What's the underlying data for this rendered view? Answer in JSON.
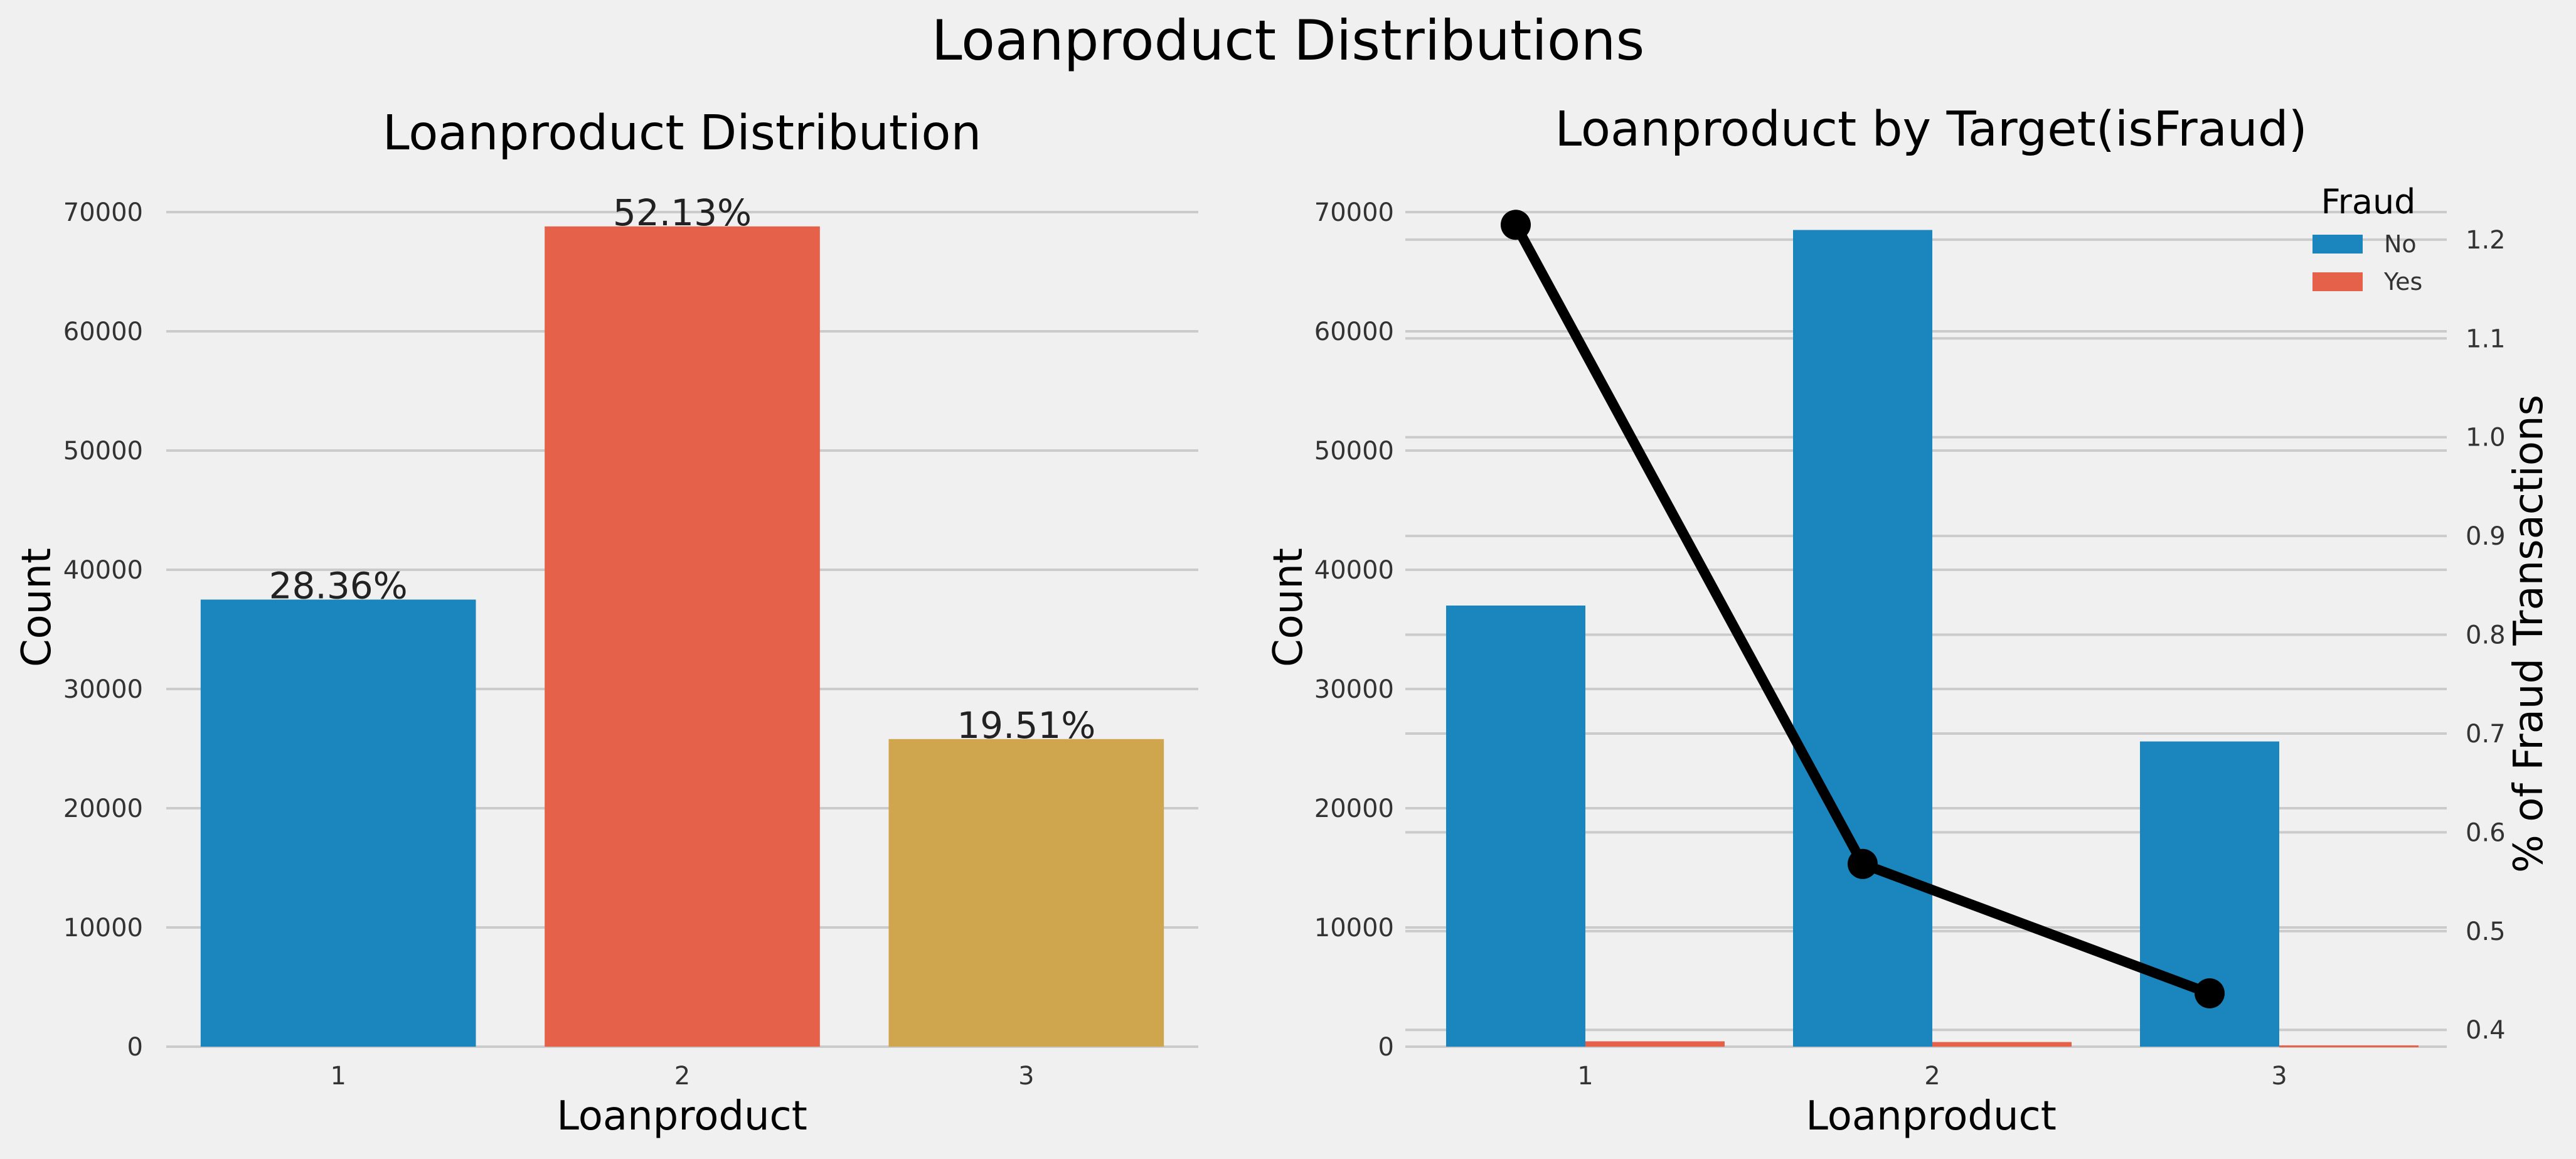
{
  "figure": {
    "title": "Loanproduct Distributions"
  },
  "colors": {
    "background": "#f0f0f0",
    "grid": "#cbcbcb",
    "bar1": "#1a86bd",
    "bar2": "#e5614a",
    "bar3": "#cfa54d",
    "no": "#1a86bd",
    "yes": "#e5614a",
    "line": "#000000"
  },
  "chart_data": [
    {
      "type": "bar",
      "title": "Loanproduct Distribution",
      "xlabel": "Loanproduct",
      "ylabel": "Count",
      "categories": [
        "1",
        "2",
        "3"
      ],
      "values": [
        37500,
        68800,
        25800
      ],
      "data_labels": [
        "28.36%",
        "52.13%",
        "19.51%"
      ],
      "ylim": [
        0,
        72000
      ],
      "yticks": [
        "0",
        "10000",
        "20000",
        "30000",
        "40000",
        "50000",
        "60000",
        "70000"
      ],
      "grid": true
    },
    {
      "type": "bar",
      "title": "Loanproduct by Target(isFraud)",
      "xlabel": "Loanproduct",
      "ylabel": "Count",
      "y2label": "% of Fraud Transactions",
      "categories": [
        "1",
        "2",
        "3"
      ],
      "legend": {
        "title": "Fraud",
        "position": "top-right"
      },
      "series": [
        {
          "name": "No",
          "values": [
            37000,
            68500,
            25600
          ]
        },
        {
          "name": "Yes",
          "values": [
            450,
            390,
            110
          ]
        }
      ],
      "line_series": {
        "values": [
          1.215,
          0.568,
          0.437
        ]
      },
      "ylim": [
        0,
        72000
      ],
      "y2lim": [
        0.383,
        1.252
      ],
      "yticks": [
        "0",
        "10000",
        "20000",
        "30000",
        "40000",
        "50000",
        "60000",
        "70000"
      ],
      "y2ticks": [
        "0.4",
        "0.5",
        "0.6",
        "0.7",
        "0.8",
        "0.9",
        "1.0",
        "1.1",
        "1.2"
      ],
      "grid": true
    }
  ]
}
